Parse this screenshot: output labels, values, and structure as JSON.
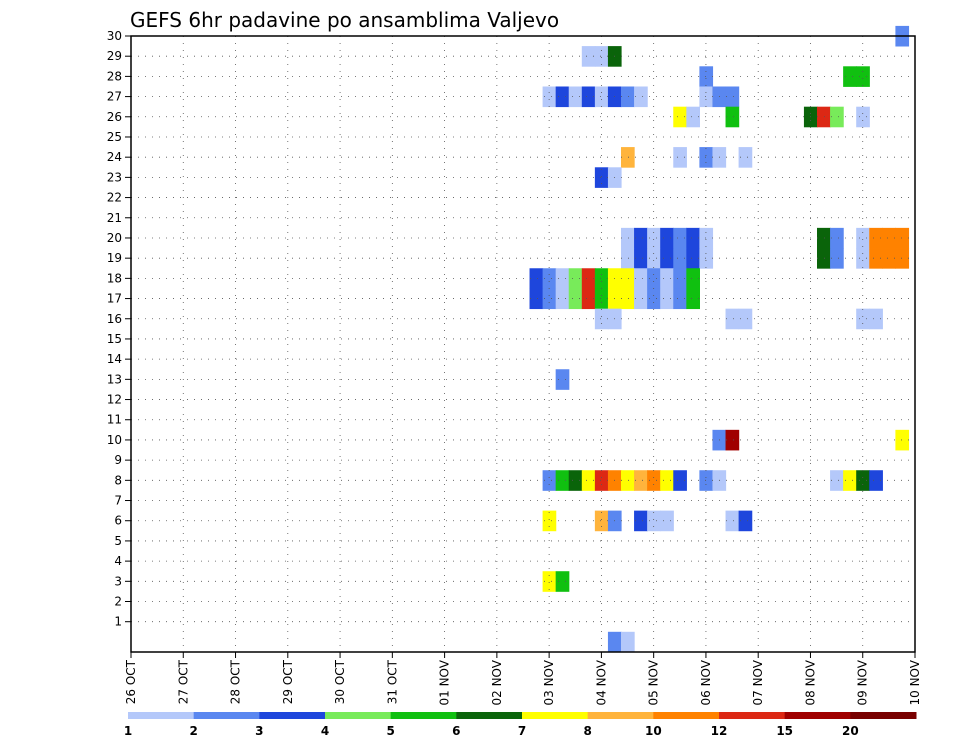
{
  "chart_data": {
    "type": "heatmap",
    "title": "GEFS 6hr padavine po ansamblima Valjevo",
    "xlabel": "",
    "ylabel": "",
    "x_tick_labels": [
      "26 OCT",
      "27 OCT",
      "28 OCT",
      "29 OCT",
      "30 OCT",
      "31 OCT",
      "01 NOV",
      "02 NOV",
      "03 NOV",
      "04 NOV",
      "05 NOV",
      "06 NOV",
      "07 NOV",
      "08 NOV",
      "09 NOV",
      "10 NOV"
    ],
    "y_tick_labels": [
      "1",
      "2",
      "3",
      "4",
      "5",
      "6",
      "7",
      "8",
      "9",
      "10",
      "11",
      "12",
      "13",
      "14",
      "15",
      "16",
      "17",
      "18",
      "19",
      "20",
      "21",
      "22",
      "23",
      "24",
      "25",
      "26",
      "27",
      "28",
      "29",
      "30"
    ],
    "xlim": [
      0,
      60
    ],
    "ylim": [
      0,
      30
    ],
    "grid": true,
    "colorbar": {
      "labels": [
        "1",
        "2",
        "3",
        "4",
        "5",
        "6",
        "7",
        "8",
        "10",
        "12",
        "15",
        "20"
      ],
      "colors": [
        "#b4c8fa",
        "#5a87f0",
        "#1e46dc",
        "#78eb5a",
        "#10c010",
        "#0a640a",
        "#ffff00",
        "#ffb43c",
        "#ff8200",
        "#dc2814",
        "#a00000",
        "#780000"
      ]
    },
    "colors": {
      "c1": "#b4c8fa",
      "c2": "#5a87f0",
      "c3": "#1e46dc",
      "c4": "#78eb5a",
      "c5": "#10c010",
      "c6": "#0a640a",
      "c7": "#ffff00",
      "c8": "#ffb43c",
      "c10": "#ff8200",
      "c12": "#dc2814",
      "c15": "#a00000",
      "c20": "#780000"
    },
    "cells": [
      {
        "member": 29,
        "steps": [
          [
            35,
            "c1"
          ],
          [
            36,
            "c1"
          ],
          [
            37,
            "c6"
          ]
        ]
      },
      {
        "member": 28,
        "steps": [
          [
            44,
            "c2"
          ],
          [
            55,
            "c5"
          ],
          [
            56,
            "c5"
          ]
        ]
      },
      {
        "member": 27,
        "steps": [
          [
            32,
            "c1"
          ],
          [
            33,
            "c3"
          ],
          [
            34,
            "c1"
          ],
          [
            35,
            "c3"
          ],
          [
            36,
            "c1"
          ],
          [
            37,
            "c3"
          ],
          [
            38,
            "c2"
          ],
          [
            39,
            "c1"
          ],
          [
            44,
            "c1"
          ],
          [
            45,
            "c2"
          ],
          [
            46,
            "c2"
          ]
        ]
      },
      {
        "member": 26,
        "steps": [
          [
            42,
            "c7"
          ],
          [
            43,
            "c1"
          ],
          [
            46,
            "c5"
          ],
          [
            52,
            "c6"
          ],
          [
            53,
            "c12"
          ],
          [
            54,
            "c4"
          ],
          [
            56,
            "c1"
          ]
        ]
      },
      {
        "member": 24,
        "steps": [
          [
            38,
            "c8"
          ],
          [
            42,
            "c1"
          ],
          [
            44,
            "c2"
          ],
          [
            45,
            "c1"
          ],
          [
            47,
            "c1"
          ]
        ]
      },
      {
        "member": 23,
        "steps": [
          [
            36,
            "c3"
          ],
          [
            37,
            "c1"
          ]
        ]
      },
      {
        "member": 20,
        "steps": [
          [
            38,
            "c1"
          ],
          [
            39,
            "c3"
          ],
          [
            40,
            "c1"
          ],
          [
            41,
            "c3"
          ],
          [
            42,
            "c2"
          ],
          [
            43,
            "c3"
          ],
          [
            44,
            "c1"
          ],
          [
            53,
            "c6"
          ],
          [
            54,
            "c2"
          ],
          [
            56,
            "c1"
          ],
          [
            57,
            "c10"
          ],
          [
            58,
            "c10"
          ],
          [
            59,
            "c10"
          ]
        ]
      },
      {
        "member": 19,
        "steps": [
          [
            38,
            "c1"
          ],
          [
            39,
            "c3"
          ],
          [
            40,
            "c1"
          ],
          [
            41,
            "c3"
          ],
          [
            42,
            "c2"
          ],
          [
            43,
            "c3"
          ],
          [
            44,
            "c1"
          ],
          [
            53,
            "c6"
          ],
          [
            54,
            "c2"
          ],
          [
            56,
            "c1"
          ],
          [
            57,
            "c10"
          ],
          [
            58,
            "c10"
          ],
          [
            59,
            "c10"
          ]
        ]
      },
      {
        "member": 18,
        "steps": [
          [
            31,
            "c3"
          ],
          [
            32,
            "c2"
          ],
          [
            33,
            "c1"
          ],
          [
            34,
            "c4"
          ],
          [
            35,
            "c12"
          ],
          [
            36,
            "c5"
          ],
          [
            37,
            "c7"
          ],
          [
            38,
            "c7"
          ],
          [
            39,
            "c1"
          ],
          [
            40,
            "c2"
          ],
          [
            41,
            "c1"
          ],
          [
            42,
            "c2"
          ],
          [
            43,
            "c5"
          ]
        ]
      },
      {
        "member": 17,
        "steps": [
          [
            31,
            "c3"
          ],
          [
            32,
            "c2"
          ],
          [
            33,
            "c1"
          ],
          [
            34,
            "c4"
          ],
          [
            35,
            "c12"
          ],
          [
            36,
            "c5"
          ],
          [
            37,
            "c7"
          ],
          [
            38,
            "c7"
          ],
          [
            39,
            "c1"
          ],
          [
            40,
            "c2"
          ],
          [
            41,
            "c1"
          ],
          [
            42,
            "c2"
          ],
          [
            43,
            "c5"
          ]
        ]
      },
      {
        "member": 16,
        "steps": [
          [
            36,
            "c1"
          ],
          [
            37,
            "c1"
          ],
          [
            46,
            "c1"
          ],
          [
            47,
            "c1"
          ],
          [
            56,
            "c1"
          ],
          [
            57,
            "c1"
          ]
        ]
      },
      {
        "member": 13,
        "steps": [
          [
            33,
            "c2"
          ]
        ]
      },
      {
        "member": 10,
        "steps": [
          [
            45,
            "c2"
          ],
          [
            46,
            "c15"
          ],
          [
            59,
            "c7"
          ]
        ]
      },
      {
        "member": 8,
        "steps": [
          [
            32,
            "c2"
          ],
          [
            33,
            "c5"
          ],
          [
            34,
            "c6"
          ],
          [
            35,
            "c7"
          ],
          [
            36,
            "c12"
          ],
          [
            37,
            "c10"
          ],
          [
            38,
            "c7"
          ],
          [
            39,
            "c8"
          ],
          [
            40,
            "c10"
          ],
          [
            41,
            "c7"
          ],
          [
            42,
            "c3"
          ],
          [
            44,
            "c2"
          ],
          [
            45,
            "c1"
          ],
          [
            54,
            "c1"
          ],
          [
            55,
            "c7"
          ],
          [
            56,
            "c6"
          ],
          [
            57,
            "c3"
          ]
        ]
      },
      {
        "member": 6,
        "steps": [
          [
            32,
            "c7"
          ],
          [
            36,
            "c8"
          ],
          [
            37,
            "c2"
          ],
          [
            39,
            "c3"
          ],
          [
            40,
            "c1"
          ],
          [
            41,
            "c1"
          ],
          [
            46,
            "c1"
          ],
          [
            47,
            "c3"
          ]
        ]
      },
      {
        "member": 3,
        "steps": [
          [
            32,
            "c7"
          ],
          [
            33,
            "c5"
          ]
        ]
      },
      {
        "member": 30,
        "steps": [
          [
            59,
            "c2"
          ]
        ]
      },
      {
        "member": 0,
        "steps": [
          [
            37,
            "c2"
          ],
          [
            38,
            "c1"
          ]
        ]
      }
    ]
  }
}
